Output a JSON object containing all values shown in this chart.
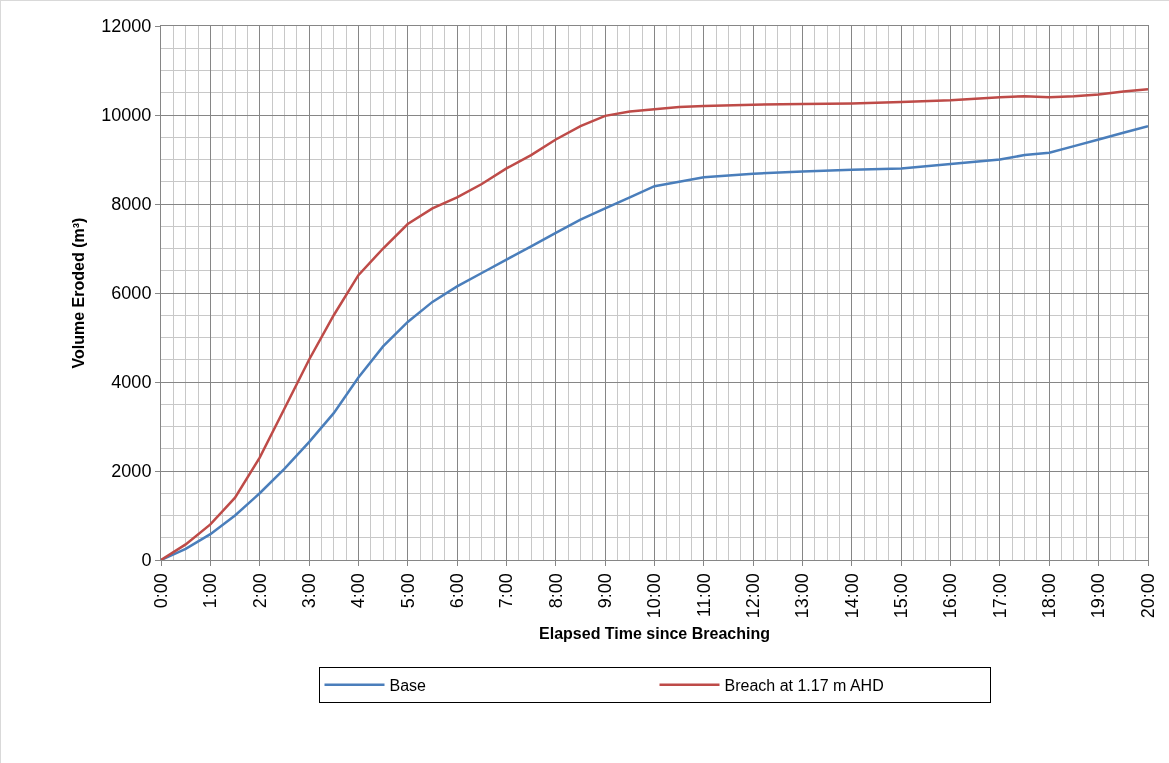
{
  "chart_data": {
    "type": "line",
    "xlabel": "Elapsed Time since Breaching",
    "ylabel": "Volume Eroded (m³)",
    "xlim": [
      0,
      20
    ],
    "xticks": [
      {
        "value": 0,
        "label": "0:00"
      },
      {
        "value": 1,
        "label": "1:00"
      },
      {
        "value": 2,
        "label": "2:00"
      },
      {
        "value": 3,
        "label": "3:00"
      },
      {
        "value": 4,
        "label": "4:00"
      },
      {
        "value": 5,
        "label": "5:00"
      },
      {
        "value": 6,
        "label": "6:00"
      },
      {
        "value": 7,
        "label": "7:00"
      },
      {
        "value": 8,
        "label": "8:00"
      },
      {
        "value": 9,
        "label": "9:00"
      },
      {
        "value": 10,
        "label": "10:00"
      },
      {
        "value": 11,
        "label": "11:00"
      },
      {
        "value": 12,
        "label": "12:00"
      },
      {
        "value": 13,
        "label": "13:00"
      },
      {
        "value": 14,
        "label": "14:00"
      },
      {
        "value": 15,
        "label": "15:00"
      },
      {
        "value": 16,
        "label": "16:00"
      },
      {
        "value": 17,
        "label": "17:00"
      },
      {
        "value": 18,
        "label": "18:00"
      },
      {
        "value": 19,
        "label": "19:00"
      },
      {
        "value": 20,
        "label": "20:00"
      }
    ],
    "ylim": [
      0,
      12000
    ],
    "yticks": [
      0,
      2000,
      4000,
      6000,
      8000,
      10000,
      12000
    ],
    "grid": true,
    "legend": "bottom",
    "marker": "none",
    "line_style": "solid",
    "x": [
      0,
      0.5,
      1,
      1.5,
      2,
      2.5,
      3,
      3.5,
      4,
      4.5,
      5,
      5.5,
      6,
      6.5,
      7,
      7.5,
      8,
      8.5,
      9,
      9.5,
      10,
      10.5,
      11,
      12,
      13,
      14,
      15,
      16,
      17,
      17.5,
      18,
      18.5,
      19,
      19.5,
      20
    ],
    "series": [
      {
        "name": "Base",
        "color": "#4a7ebb",
        "values": [
          0,
          250,
          580,
          1000,
          1500,
          2050,
          2650,
          3300,
          4100,
          4800,
          5350,
          5800,
          6150,
          6450,
          6750,
          7050,
          7350,
          7650,
          7900,
          8150,
          8400,
          8500,
          8600,
          8680,
          8730,
          8770,
          8800,
          8900,
          9000,
          9100,
          9150,
          9300,
          9450,
          9600,
          9750
        ]
      },
      {
        "name": "Breach at 1.17 m AHD",
        "color": "#be4b48",
        "values": [
          0,
          350,
          800,
          1400,
          2300,
          3400,
          4500,
          5500,
          6400,
          7000,
          7550,
          7900,
          8150,
          8450,
          8800,
          9100,
          9450,
          9750,
          9980,
          10080,
          10130,
          10180,
          10200,
          10230,
          10250,
          10260,
          10290,
          10330,
          10400,
          10420,
          10400,
          10420,
          10460,
          10530,
          10580
        ]
      }
    ]
  }
}
